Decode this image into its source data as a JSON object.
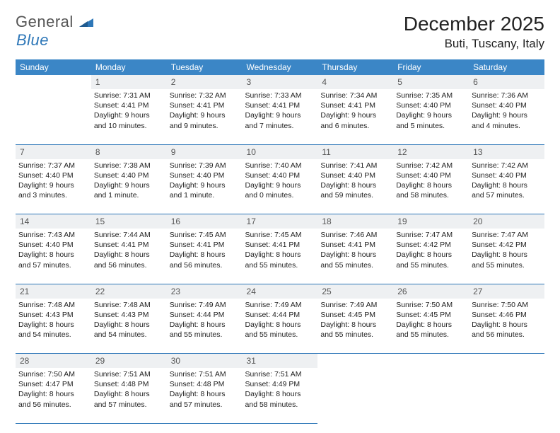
{
  "logo": {
    "text_main": "General",
    "text_accent": "Blue"
  },
  "title": "December 2025",
  "location": "Buti, Tuscany, Italy",
  "colors": {
    "header_bg": "#3b86c6",
    "header_text": "#ffffff",
    "daynum_bg": "#eef0f2",
    "border": "#2e77b8",
    "body_text": "#222222",
    "logo_accent": "#2e77b8"
  },
  "weekdays": [
    "Sunday",
    "Monday",
    "Tuesday",
    "Wednesday",
    "Thursday",
    "Friday",
    "Saturday"
  ],
  "weeks": [
    {
      "nums": [
        "",
        "1",
        "2",
        "3",
        "4",
        "5",
        "6"
      ],
      "cells": [
        null,
        {
          "sunrise": "Sunrise: 7:31 AM",
          "sunset": "Sunset: 4:41 PM",
          "daylight1": "Daylight: 9 hours",
          "daylight2": "and 10 minutes."
        },
        {
          "sunrise": "Sunrise: 7:32 AM",
          "sunset": "Sunset: 4:41 PM",
          "daylight1": "Daylight: 9 hours",
          "daylight2": "and 9 minutes."
        },
        {
          "sunrise": "Sunrise: 7:33 AM",
          "sunset": "Sunset: 4:41 PM",
          "daylight1": "Daylight: 9 hours",
          "daylight2": "and 7 minutes."
        },
        {
          "sunrise": "Sunrise: 7:34 AM",
          "sunset": "Sunset: 4:41 PM",
          "daylight1": "Daylight: 9 hours",
          "daylight2": "and 6 minutes."
        },
        {
          "sunrise": "Sunrise: 7:35 AM",
          "sunset": "Sunset: 4:40 PM",
          "daylight1": "Daylight: 9 hours",
          "daylight2": "and 5 minutes."
        },
        {
          "sunrise": "Sunrise: 7:36 AM",
          "sunset": "Sunset: 4:40 PM",
          "daylight1": "Daylight: 9 hours",
          "daylight2": "and 4 minutes."
        }
      ]
    },
    {
      "nums": [
        "7",
        "8",
        "9",
        "10",
        "11",
        "12",
        "13"
      ],
      "cells": [
        {
          "sunrise": "Sunrise: 7:37 AM",
          "sunset": "Sunset: 4:40 PM",
          "daylight1": "Daylight: 9 hours",
          "daylight2": "and 3 minutes."
        },
        {
          "sunrise": "Sunrise: 7:38 AM",
          "sunset": "Sunset: 4:40 PM",
          "daylight1": "Daylight: 9 hours",
          "daylight2": "and 1 minute."
        },
        {
          "sunrise": "Sunrise: 7:39 AM",
          "sunset": "Sunset: 4:40 PM",
          "daylight1": "Daylight: 9 hours",
          "daylight2": "and 1 minute."
        },
        {
          "sunrise": "Sunrise: 7:40 AM",
          "sunset": "Sunset: 4:40 PM",
          "daylight1": "Daylight: 9 hours",
          "daylight2": "and 0 minutes."
        },
        {
          "sunrise": "Sunrise: 7:41 AM",
          "sunset": "Sunset: 4:40 PM",
          "daylight1": "Daylight: 8 hours",
          "daylight2": "and 59 minutes."
        },
        {
          "sunrise": "Sunrise: 7:42 AM",
          "sunset": "Sunset: 4:40 PM",
          "daylight1": "Daylight: 8 hours",
          "daylight2": "and 58 minutes."
        },
        {
          "sunrise": "Sunrise: 7:42 AM",
          "sunset": "Sunset: 4:40 PM",
          "daylight1": "Daylight: 8 hours",
          "daylight2": "and 57 minutes."
        }
      ]
    },
    {
      "nums": [
        "14",
        "15",
        "16",
        "17",
        "18",
        "19",
        "20"
      ],
      "cells": [
        {
          "sunrise": "Sunrise: 7:43 AM",
          "sunset": "Sunset: 4:40 PM",
          "daylight1": "Daylight: 8 hours",
          "daylight2": "and 57 minutes."
        },
        {
          "sunrise": "Sunrise: 7:44 AM",
          "sunset": "Sunset: 4:41 PM",
          "daylight1": "Daylight: 8 hours",
          "daylight2": "and 56 minutes."
        },
        {
          "sunrise": "Sunrise: 7:45 AM",
          "sunset": "Sunset: 4:41 PM",
          "daylight1": "Daylight: 8 hours",
          "daylight2": "and 56 minutes."
        },
        {
          "sunrise": "Sunrise: 7:45 AM",
          "sunset": "Sunset: 4:41 PM",
          "daylight1": "Daylight: 8 hours",
          "daylight2": "and 55 minutes."
        },
        {
          "sunrise": "Sunrise: 7:46 AM",
          "sunset": "Sunset: 4:41 PM",
          "daylight1": "Daylight: 8 hours",
          "daylight2": "and 55 minutes."
        },
        {
          "sunrise": "Sunrise: 7:47 AM",
          "sunset": "Sunset: 4:42 PM",
          "daylight1": "Daylight: 8 hours",
          "daylight2": "and 55 minutes."
        },
        {
          "sunrise": "Sunrise: 7:47 AM",
          "sunset": "Sunset: 4:42 PM",
          "daylight1": "Daylight: 8 hours",
          "daylight2": "and 55 minutes."
        }
      ]
    },
    {
      "nums": [
        "21",
        "22",
        "23",
        "24",
        "25",
        "26",
        "27"
      ],
      "cells": [
        {
          "sunrise": "Sunrise: 7:48 AM",
          "sunset": "Sunset: 4:43 PM",
          "daylight1": "Daylight: 8 hours",
          "daylight2": "and 54 minutes."
        },
        {
          "sunrise": "Sunrise: 7:48 AM",
          "sunset": "Sunset: 4:43 PM",
          "daylight1": "Daylight: 8 hours",
          "daylight2": "and 54 minutes."
        },
        {
          "sunrise": "Sunrise: 7:49 AM",
          "sunset": "Sunset: 4:44 PM",
          "daylight1": "Daylight: 8 hours",
          "daylight2": "and 55 minutes."
        },
        {
          "sunrise": "Sunrise: 7:49 AM",
          "sunset": "Sunset: 4:44 PM",
          "daylight1": "Daylight: 8 hours",
          "daylight2": "and 55 minutes."
        },
        {
          "sunrise": "Sunrise: 7:49 AM",
          "sunset": "Sunset: 4:45 PM",
          "daylight1": "Daylight: 8 hours",
          "daylight2": "and 55 minutes."
        },
        {
          "sunrise": "Sunrise: 7:50 AM",
          "sunset": "Sunset: 4:45 PM",
          "daylight1": "Daylight: 8 hours",
          "daylight2": "and 55 minutes."
        },
        {
          "sunrise": "Sunrise: 7:50 AM",
          "sunset": "Sunset: 4:46 PM",
          "daylight1": "Daylight: 8 hours",
          "daylight2": "and 56 minutes."
        }
      ]
    },
    {
      "nums": [
        "28",
        "29",
        "30",
        "31",
        "",
        "",
        ""
      ],
      "cells": [
        {
          "sunrise": "Sunrise: 7:50 AM",
          "sunset": "Sunset: 4:47 PM",
          "daylight1": "Daylight: 8 hours",
          "daylight2": "and 56 minutes."
        },
        {
          "sunrise": "Sunrise: 7:51 AM",
          "sunset": "Sunset: 4:48 PM",
          "daylight1": "Daylight: 8 hours",
          "daylight2": "and 57 minutes."
        },
        {
          "sunrise": "Sunrise: 7:51 AM",
          "sunset": "Sunset: 4:48 PM",
          "daylight1": "Daylight: 8 hours",
          "daylight2": "and 57 minutes."
        },
        {
          "sunrise": "Sunrise: 7:51 AM",
          "sunset": "Sunset: 4:49 PM",
          "daylight1": "Daylight: 8 hours",
          "daylight2": "and 58 minutes."
        },
        null,
        null,
        null
      ]
    }
  ]
}
